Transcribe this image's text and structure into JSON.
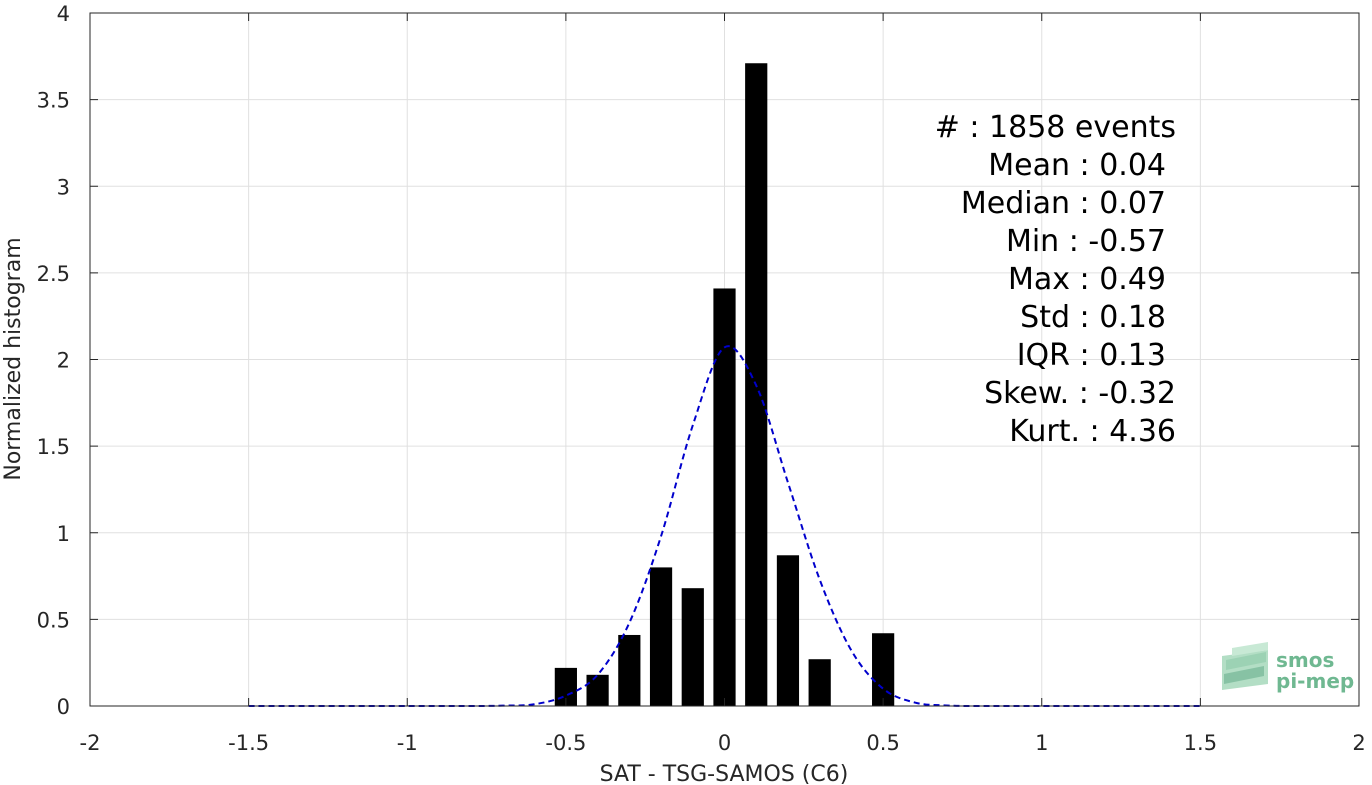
{
  "chart_data": {
    "type": "bar",
    "xlabel": "SAT - TSG-SAMOS (C6)",
    "ylabel": "Normalized histogram",
    "xlim": [
      -2,
      2
    ],
    "ylim": [
      0,
      4
    ],
    "grid": true,
    "x_ticks": [
      -2,
      -1.5,
      -1,
      -0.5,
      0,
      0.5,
      1,
      1.5,
      2
    ],
    "x_tick_labels": [
      "-2",
      "-1.5",
      "-1",
      "-0.5",
      "0",
      "0.5",
      "1",
      "1.5",
      "2"
    ],
    "y_ticks": [
      0,
      0.5,
      1,
      1.5,
      2,
      2.5,
      3,
      3.5,
      4
    ],
    "y_tick_labels": [
      "0",
      "0.5",
      "1",
      "1.5",
      "2",
      "2.5",
      "3",
      "3.5",
      "4"
    ],
    "series": [
      {
        "kind": "bar",
        "color": "#000000",
        "bin_width": 0.1,
        "x": [
          -0.5,
          -0.4,
          -0.3,
          -0.2,
          -0.1,
          0.0,
          0.1,
          0.2,
          0.3,
          0.4,
          0.5
        ],
        "values": [
          0.22,
          0.18,
          0.41,
          0.8,
          0.68,
          2.41,
          3.71,
          0.87,
          0.27,
          0.0,
          0.42
        ]
      },
      {
        "kind": "line",
        "style": "dashed",
        "color": "#0000cc",
        "x": [
          -1.5,
          -1.0,
          -0.8,
          -0.7,
          -0.6,
          -0.5,
          -0.4,
          -0.3,
          -0.2,
          -0.1,
          0.0,
          0.1,
          0.2,
          0.3,
          0.4,
          0.5,
          0.6,
          0.7,
          0.8,
          1.0,
          1.5
        ],
        "values": [
          0.0,
          0.0,
          0.0,
          0.002,
          0.01,
          0.06,
          0.18,
          0.48,
          0.98,
          1.62,
          2.07,
          1.85,
          1.29,
          0.73,
          0.32,
          0.1,
          0.02,
          0.003,
          0.0,
          0.0,
          0.0
        ]
      }
    ],
    "annotations": [
      "#  : 1858 events",
      "Mean : 0.04",
      "Median : 0.07",
      "Min : -0.57",
      "Max : 0.49",
      "Std : 0.18",
      "IQR : 0.13",
      "Skew. : -0.32",
      "Kurt. : 4.36"
    ]
  },
  "logo": {
    "line1": "smos",
    "line2": "pi-mep",
    "color": "#6fb891"
  }
}
